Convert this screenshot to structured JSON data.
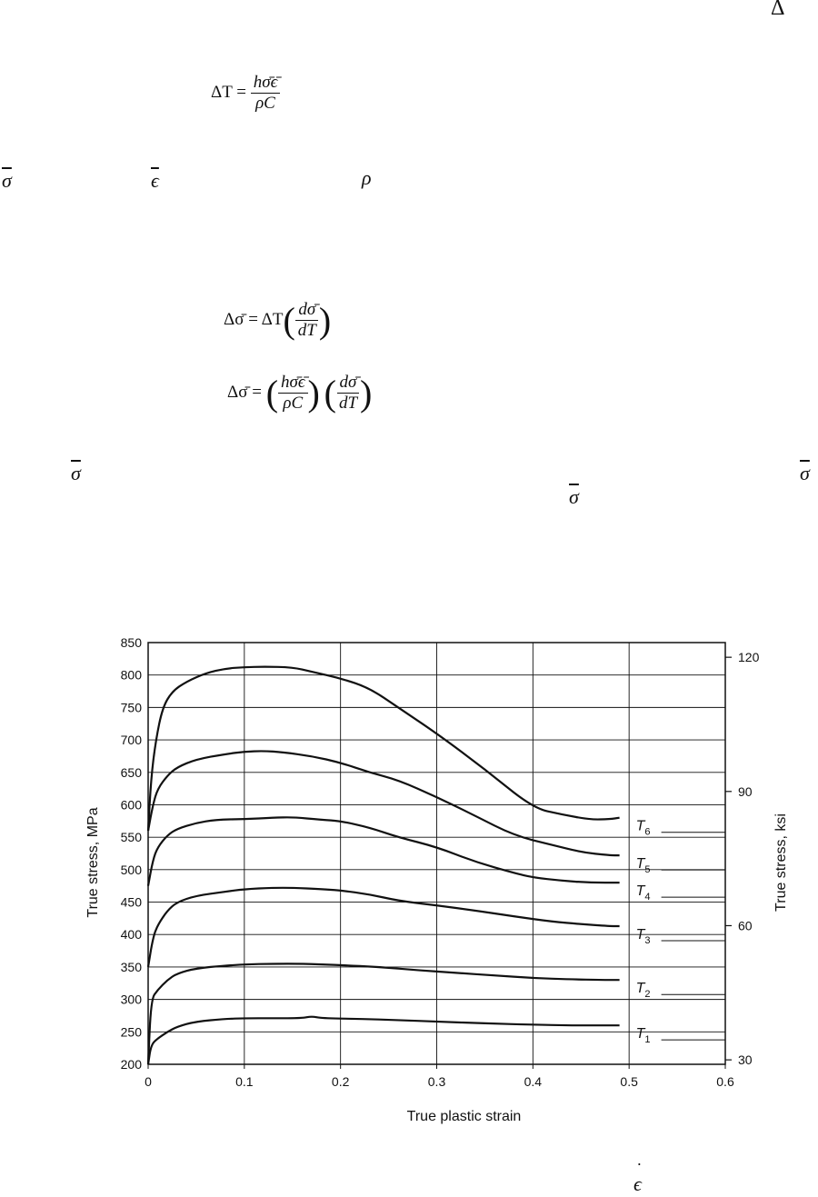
{
  "fragments": {
    "delta_corner": "Δ",
    "sigma_bar": "σ",
    "epsilon_bar": "ϵ",
    "rho": "ρ",
    "epsilon_dot": "ϵ"
  },
  "equations": {
    "eq1": {
      "lhs": "ΔT =",
      "num": "hσ̄ϵ̄",
      "den": "ρC"
    },
    "eq2": {
      "lhs": "Δσ̄ = ΔT",
      "num": "dσ̄",
      "den": "dT"
    },
    "eq3": {
      "lhs": "Δσ̄ =",
      "num1": "hσ̄ϵ̄",
      "den1": "ρC",
      "num2": "dσ̄",
      "den2": "dT"
    }
  },
  "chart_data": {
    "type": "line",
    "xlabel": "True plastic strain",
    "ylabel": "True stress, MPa",
    "ylabel_right": "True stress, ksi",
    "xlim": [
      0,
      0.6
    ],
    "ylim": [
      200,
      850
    ],
    "x_ticks": [
      "0",
      "0.1",
      "0.2",
      "0.3",
      "0.4",
      "0.5",
      "0.6"
    ],
    "y_ticks": [
      "200",
      "250",
      "300",
      "350",
      "400",
      "450",
      "500",
      "550",
      "600",
      "650",
      "700",
      "750",
      "800",
      "850"
    ],
    "right_axis": {
      "unit": "ksi",
      "ticks": [
        "30",
        "60",
        "90",
        "120"
      ]
    },
    "grid": true,
    "series": [
      {
        "name": "T6",
        "label_main": "T",
        "label_sub": "6",
        "x": [
          0,
          0.003,
          0.008,
          0.015,
          0.025,
          0.04,
          0.06,
          0.08,
          0.1,
          0.12,
          0.15,
          0.17,
          0.2,
          0.23,
          0.26,
          0.3,
          0.35,
          0.4,
          0.43,
          0.46,
          0.48,
          0.49
        ],
        "y": [
          560,
          640,
          700,
          750,
          775,
          790,
          803,
          810,
          812,
          813,
          812,
          805,
          795,
          780,
          750,
          710,
          655,
          595,
          585,
          577,
          578,
          580
        ]
      },
      {
        "name": "T5",
        "label_main": "T",
        "label_sub": "5",
        "x": [
          0,
          0.005,
          0.01,
          0.02,
          0.03,
          0.05,
          0.08,
          0.1,
          0.12,
          0.14,
          0.17,
          0.2,
          0.23,
          0.26,
          0.3,
          0.34,
          0.38,
          0.42,
          0.45,
          0.48,
          0.49
        ],
        "y": [
          560,
          600,
          625,
          645,
          658,
          670,
          678,
          682,
          683,
          681,
          675,
          665,
          650,
          638,
          612,
          583,
          553,
          538,
          527,
          522,
          522
        ]
      },
      {
        "name": "T4",
        "label_main": "T",
        "label_sub": "4",
        "x": [
          0,
          0.005,
          0.01,
          0.02,
          0.03,
          0.05,
          0.07,
          0.1,
          0.13,
          0.15,
          0.18,
          0.2,
          0.23,
          0.26,
          0.3,
          0.34,
          0.38,
          0.4,
          0.43,
          0.46,
          0.49
        ],
        "y": [
          475,
          515,
          535,
          553,
          563,
          572,
          577,
          578,
          580,
          581,
          577,
          575,
          565,
          550,
          535,
          512,
          495,
          488,
          483,
          480,
          480
        ]
      },
      {
        "name": "T3",
        "label_main": "T",
        "label_sub": "3",
        "x": [
          0,
          0.005,
          0.01,
          0.02,
          0.03,
          0.05,
          0.08,
          0.1,
          0.13,
          0.15,
          0.18,
          0.2,
          0.23,
          0.26,
          0.3,
          0.34,
          0.38,
          0.42,
          0.45,
          0.48,
          0.49
        ],
        "y": [
          350,
          395,
          415,
          437,
          450,
          460,
          466,
          470,
          472,
          472,
          470,
          468,
          462,
          452,
          445,
          437,
          428,
          420,
          416,
          413,
          413
        ]
      },
      {
        "name": "T2",
        "label_main": "T",
        "label_sub": "2",
        "x": [
          0,
          0.003,
          0.01,
          0.02,
          0.03,
          0.05,
          0.08,
          0.1,
          0.13,
          0.16,
          0.2,
          0.24,
          0.28,
          0.32,
          0.36,
          0.4,
          0.44,
          0.47,
          0.49
        ],
        "y": [
          200,
          300,
          315,
          330,
          340,
          348,
          352,
          354,
          355,
          355,
          353,
          350,
          345,
          341,
          337,
          333,
          331,
          330,
          330
        ]
      },
      {
        "name": "T1",
        "label_main": "T",
        "label_sub": "1",
        "x": [
          0,
          0.003,
          0.01,
          0.02,
          0.03,
          0.05,
          0.08,
          0.1,
          0.13,
          0.16,
          0.17,
          0.18,
          0.22,
          0.26,
          0.3,
          0.35,
          0.4,
          0.44,
          0.47,
          0.49
        ],
        "y": [
          200,
          230,
          240,
          250,
          258,
          266,
          270,
          271,
          271,
          271,
          274,
          271,
          270,
          268,
          266,
          263,
          261,
          260,
          260,
          260
        ]
      }
    ]
  }
}
